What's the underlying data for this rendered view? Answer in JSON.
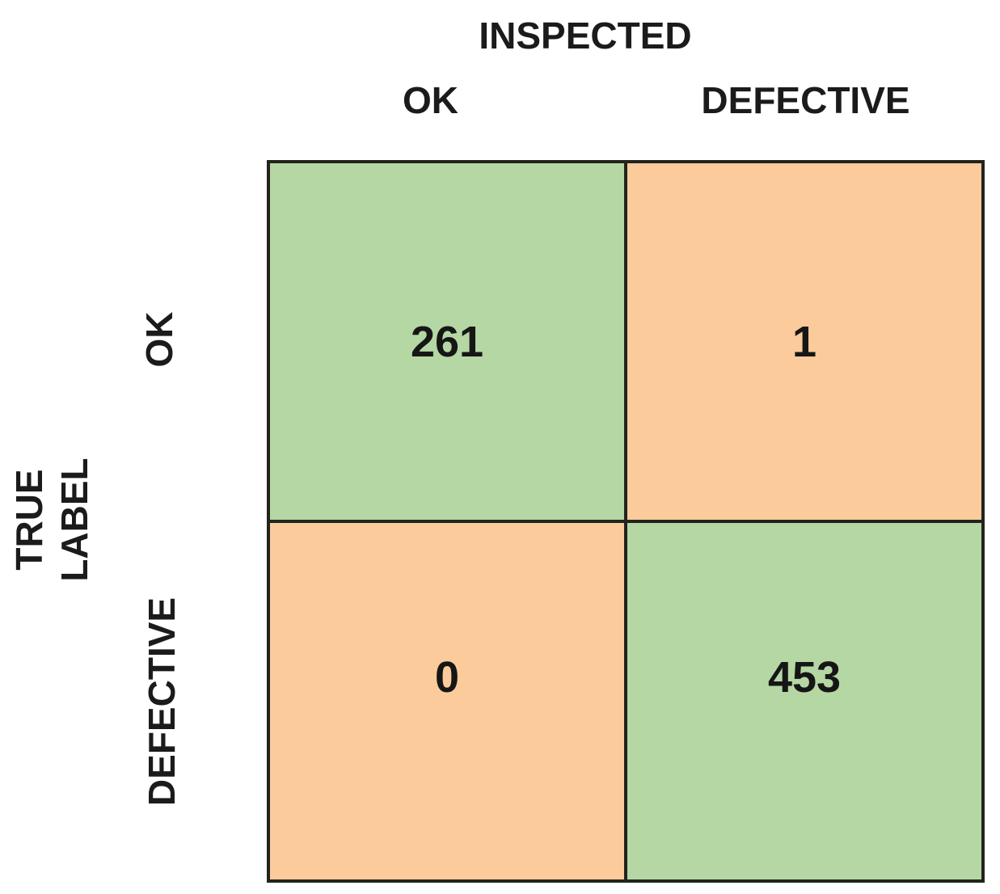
{
  "chart_data": {
    "type": "heatmap",
    "subtype": "confusion-matrix",
    "xlabel": "INSPECTED",
    "ylabel": "TRUE LABEL",
    "x_categories": [
      "OK",
      "DEFECTIVE"
    ],
    "y_categories": [
      "OK",
      "DEFECTIVE"
    ],
    "values": [
      [
        261,
        1
      ],
      [
        0,
        453
      ]
    ],
    "cell_colors": [
      [
        "#b5d7a4",
        "#fbcb9c"
      ],
      [
        "#fbcb9c",
        "#b5d7a4"
      ]
    ],
    "grid": true,
    "legend": false
  },
  "labels": {
    "x_axis_title": "INSPECTED",
    "y_axis_title_line1": "TRUE",
    "y_axis_title_line2": "LABEL"
  },
  "colors": {
    "correct_cell": "#b5d7a4",
    "incorrect_cell": "#fbcb9c",
    "grid_border": "#22231d",
    "text": "#1b1b1b",
    "background": "#ffffff"
  }
}
